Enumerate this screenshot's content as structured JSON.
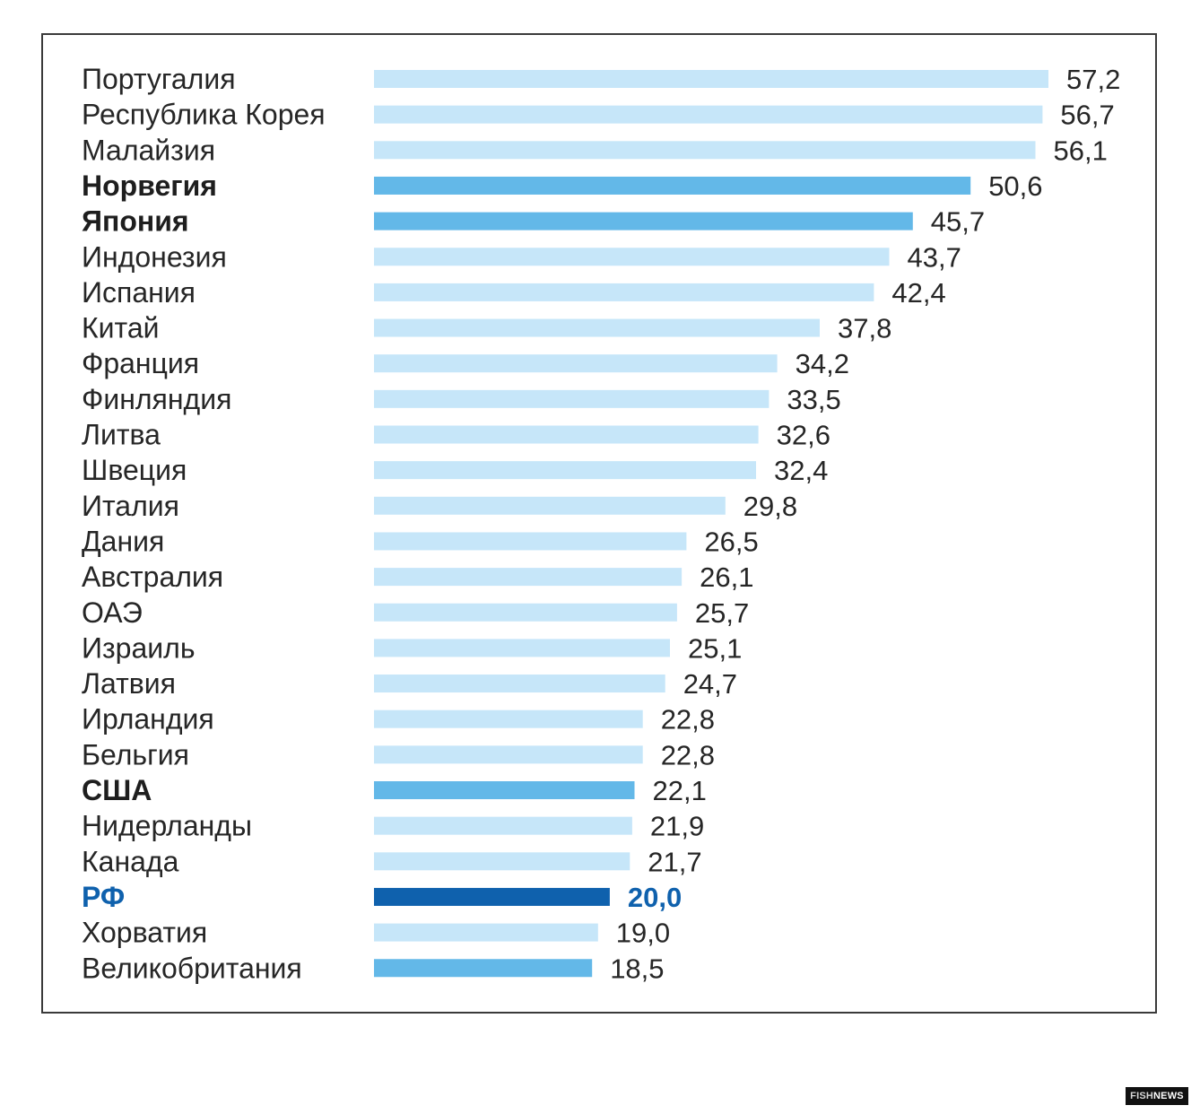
{
  "chart_data": {
    "type": "bar",
    "orientation": "horizontal",
    "title": "",
    "xlabel": "",
    "ylabel": "",
    "xlim": [
      0,
      57.2
    ],
    "grid": false,
    "legend": "none",
    "colors": {
      "default": "#c6e6f9",
      "highlight": "#63b8e8",
      "rf": "#0f61ad"
    },
    "items": [
      {
        "category": "Португалия",
        "value": 57.2,
        "label": "57,2",
        "style": "default"
      },
      {
        "category": "Республика Корея",
        "value": 56.7,
        "label": "56,7",
        "style": "default"
      },
      {
        "category": "Малайзия",
        "value": 56.1,
        "label": "56,1",
        "style": "default"
      },
      {
        "category": "Норвегия",
        "value": 50.6,
        "label": "50,6",
        "style": "highlight",
        "bold": true
      },
      {
        "category": "Япония",
        "value": 45.7,
        "label": "45,7",
        "style": "highlight",
        "bold": true
      },
      {
        "category": "Индонезия",
        "value": 43.7,
        "label": "43,7",
        "style": "default"
      },
      {
        "category": "Испания",
        "value": 42.4,
        "label": "42,4",
        "style": "default"
      },
      {
        "category": "Китай",
        "value": 37.8,
        "label": "37,8",
        "style": "default"
      },
      {
        "category": "Франция",
        "value": 34.2,
        "label": "34,2",
        "style": "default"
      },
      {
        "category": "Финляндия",
        "value": 33.5,
        "label": "33,5",
        "style": "default"
      },
      {
        "category": "Литва",
        "value": 32.6,
        "label": "32,6",
        "style": "default"
      },
      {
        "category": "Швеция",
        "value": 32.4,
        "label": "32,4",
        "style": "default"
      },
      {
        "category": "Италия",
        "value": 29.8,
        "label": "29,8",
        "style": "default"
      },
      {
        "category": "Дания",
        "value": 26.5,
        "label": "26,5",
        "style": "default"
      },
      {
        "category": "Австралия",
        "value": 26.1,
        "label": "26,1",
        "style": "default"
      },
      {
        "category": "ОАЭ",
        "value": 25.7,
        "label": "25,7",
        "style": "default"
      },
      {
        "category": "Израиль",
        "value": 25.1,
        "label": "25,1",
        "style": "default"
      },
      {
        "category": "Латвия",
        "value": 24.7,
        "label": "24,7",
        "style": "default"
      },
      {
        "category": "Ирландия",
        "value": 22.8,
        "label": "22,8",
        "style": "default"
      },
      {
        "category": "Бельгия",
        "value": 22.8,
        "label": "22,8",
        "style": "default"
      },
      {
        "category": "США",
        "value": 22.1,
        "label": "22,1",
        "style": "highlight",
        "bold": true
      },
      {
        "category": "Нидерланды",
        "value": 21.9,
        "label": "21,9",
        "style": "default"
      },
      {
        "category": "Канада",
        "value": 21.7,
        "label": "21,7",
        "style": "default"
      },
      {
        "category": "РФ",
        "value": 20.0,
        "label": "20,0",
        "style": "rf",
        "bold": true
      },
      {
        "category": "Хорватия",
        "value": 19.0,
        "label": "19,0",
        "style": "default"
      },
      {
        "category": "Великобритания",
        "value": 18.5,
        "label": "18,5",
        "style": "highlight"
      }
    ]
  },
  "watermark": {
    "part1": "FISH",
    "part2": "NEWS"
  }
}
